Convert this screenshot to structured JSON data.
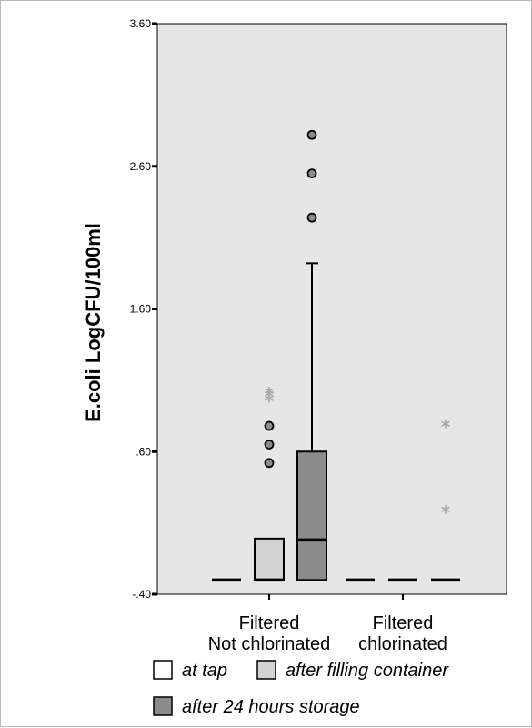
{
  "chart_data": {
    "type": "box",
    "ylabel": "E.coli LogCFU/100ml",
    "xlabel": "",
    "ylim": [
      -0.4,
      3.6
    ],
    "yticks": [
      {
        "value": 3.6,
        "label": "3.60"
      },
      {
        "value": 2.6,
        "label": "2.60"
      },
      {
        "value": 1.6,
        "label": "1.60"
      },
      {
        "value": 0.6,
        "label": ".60"
      },
      {
        "value": -0.4,
        "label": "-.40"
      }
    ],
    "categories": [
      {
        "line1": "Filtered",
        "line2": "Not chlorinated"
      },
      {
        "line1": "Filtered",
        "line2": "chlorinated"
      }
    ],
    "series": [
      {
        "name": "at tap",
        "color": "#ffffff",
        "boxes": [
          {
            "category": 0,
            "min": -0.3,
            "q1": -0.3,
            "median": -0.3,
            "q3": -0.3,
            "max": -0.3,
            "outliers": [],
            "extremes": []
          },
          {
            "category": 1,
            "min": -0.3,
            "q1": -0.3,
            "median": -0.3,
            "q3": -0.3,
            "max": -0.3,
            "outliers": [],
            "extremes": []
          }
        ]
      },
      {
        "name": "after filling container",
        "color": "#d3d3d3",
        "boxes": [
          {
            "category": 0,
            "min": -0.3,
            "q1": -0.3,
            "median": -0.3,
            "q3": -0.01,
            "max": -0.01,
            "outliers": [
              0.52,
              0.65,
              0.78
            ],
            "extremes": [
              0.96,
              0.99,
              1.01
            ]
          },
          {
            "category": 1,
            "min": -0.3,
            "q1": -0.3,
            "median": -0.3,
            "q3": -0.3,
            "max": -0.3,
            "outliers": [],
            "extremes": []
          }
        ]
      },
      {
        "name": "after 24 hours storage",
        "color": "#8c8c8c",
        "boxes": [
          {
            "category": 0,
            "min": -0.3,
            "q1": -0.3,
            "median": -0.02,
            "q3": 0.6,
            "max": 1.92,
            "outliers": [
              2.24,
              2.55,
              2.82
            ],
            "extremes": []
          },
          {
            "category": 1,
            "min": -0.3,
            "q1": -0.3,
            "median": -0.3,
            "q3": -0.3,
            "max": -0.3,
            "outliers": [],
            "extremes": [
              0.18,
              0.78
            ]
          }
        ]
      }
    ],
    "grid": false,
    "legend_position": "bottom",
    "plot_background": "#e6e6e6"
  },
  "legend": {
    "items": [
      {
        "label": "at tap",
        "color": "#ffffff"
      },
      {
        "label": "after filling container",
        "color": "#d3d3d3"
      },
      {
        "label": "after 24 hours storage",
        "color": "#8c8c8c"
      }
    ]
  }
}
